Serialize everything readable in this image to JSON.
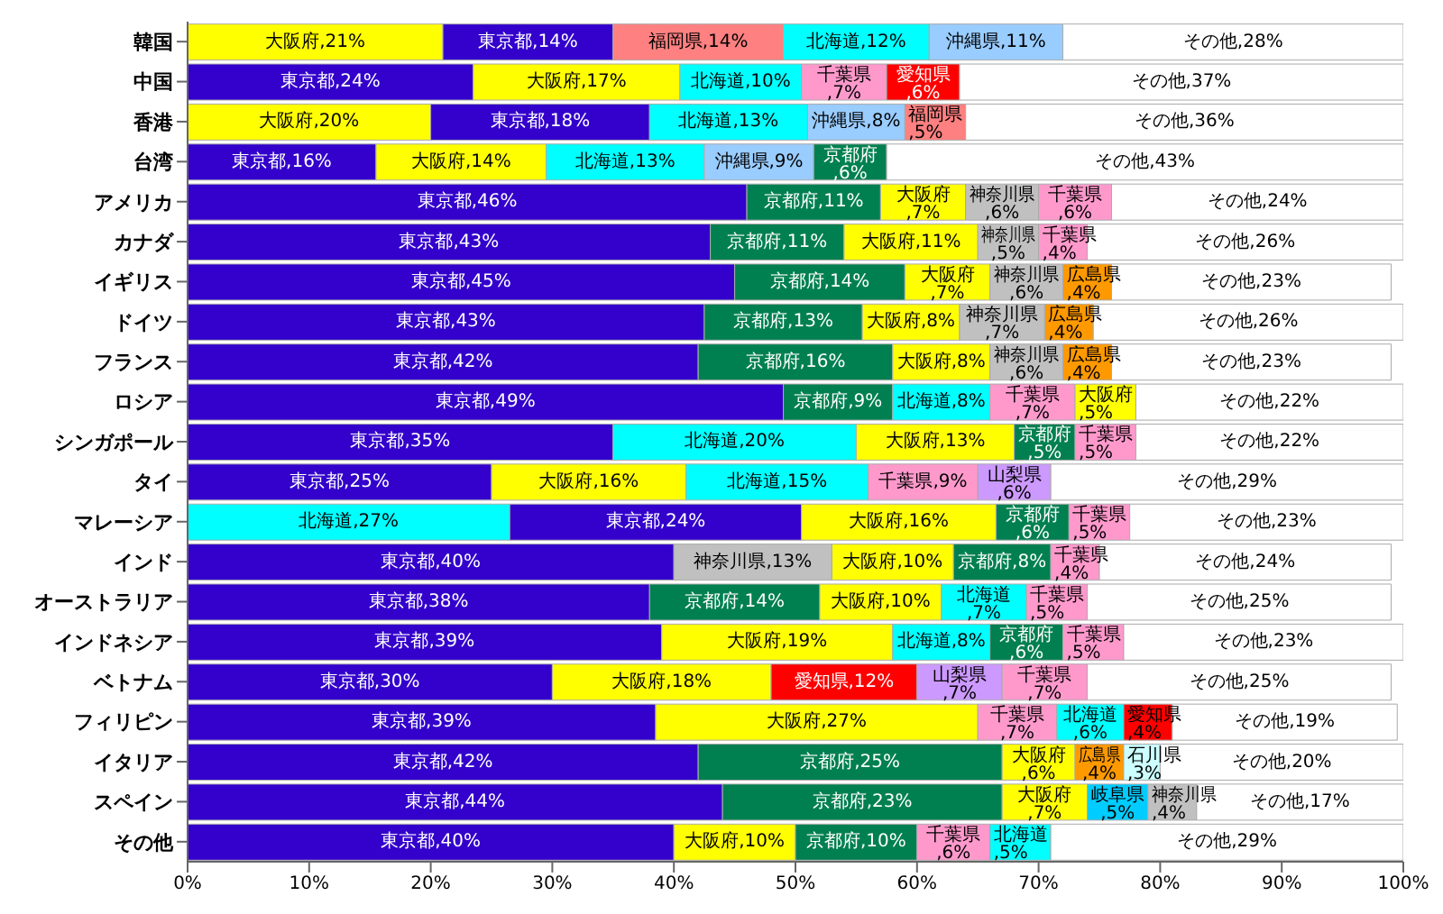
{
  "chart_data": {
    "type": "bar",
    "orientation": "horizontal",
    "stacked": true,
    "categories": [
      "韓国",
      "中国",
      "香港",
      "台湾",
      "アメリカ",
      "カナダ",
      "イギリス",
      "ドイツ",
      "フランス",
      "ロシア",
      "シンガポール",
      "タイ",
      "マレーシア",
      "インド",
      "オーストラリア",
      "インドネシア",
      "ベトナム",
      "フィリピン",
      "イタリア",
      "スペイン",
      "その他"
    ],
    "xlim": [
      0,
      100
    ],
    "xticks": [
      {
        "value": 0,
        "label": "0%"
      },
      {
        "value": 10,
        "label": "10%"
      },
      {
        "value": 20,
        "label": "20%"
      },
      {
        "value": 30,
        "label": "30%"
      },
      {
        "value": 40,
        "label": "40%"
      },
      {
        "value": 50,
        "label": "50%"
      },
      {
        "value": 60,
        "label": "60%"
      },
      {
        "value": 70,
        "label": "70%"
      },
      {
        "value": 80,
        "label": "80%"
      },
      {
        "value": 90,
        "label": "90%"
      },
      {
        "value": 100,
        "label": "100%"
      }
    ],
    "grid": false,
    "legend": false,
    "series": [
      {
        "values": [
          21,
          23.5,
          20,
          15.5,
          46,
          43,
          45,
          42.5,
          42,
          49,
          35,
          25,
          26.5,
          40,
          38,
          39,
          30,
          38.5,
          42,
          44,
          40
        ],
        "colors": [
          "#ffff00",
          "#3300cc",
          "#ffff00",
          "#3300cc",
          "#3300cc",
          "#3300cc",
          "#3300cc",
          "#3300cc",
          "#3300cc",
          "#3300cc",
          "#3300cc",
          "#3300cc",
          "#00ffff",
          "#3300cc",
          "#3300cc",
          "#3300cc",
          "#3300cc",
          "#3300cc",
          "#3300cc",
          "#3300cc",
          "#3300cc"
        ],
        "value_labels": [
          "大阪府,21%",
          "東京都,24%",
          "大阪府,20%",
          "東京都,16%",
          "東京都,46%",
          "東京都,43%",
          "東京都,45%",
          "東京都,43%",
          "東京都,42%",
          "東京都,49%",
          "東京都,35%",
          "東京都,25%",
          "北海道,27%",
          "東京都,40%",
          "東京都,38%",
          "東京都,39%",
          "東京都,30%",
          "東京都,39%",
          "東京都,42%",
          "東京都,44%",
          "東京都,40%"
        ]
      },
      {
        "values": [
          14,
          17,
          18,
          14,
          11,
          11,
          14,
          13,
          16,
          9,
          20,
          16,
          24,
          13,
          14,
          19,
          18,
          26.5,
          25,
          23,
          10
        ],
        "colors": [
          "#3300cc",
          "#ffff00",
          "#3300cc",
          "#ffff00",
          "#008050",
          "#008050",
          "#008050",
          "#008050",
          "#008050",
          "#008050",
          "#00ffff",
          "#ffff00",
          "#3300cc",
          "#c0c0c0",
          "#008050",
          "#ffff00",
          "#ffff00",
          "#ffff00",
          "#008050",
          "#008050",
          "#ffff00"
        ],
        "value_labels": [
          "東京都,14%",
          "大阪府,17%",
          "東京都,18%",
          "大阪府,14%",
          "京都府,11%",
          "京都府,11%",
          "京都府,14%",
          "京都府,13%",
          "京都府,16%",
          "京都府,9%",
          "北海道,20%",
          "大阪府,16%",
          "東京都,24%",
          "神奈川県,13%",
          "京都府,14%",
          "大阪府,19%",
          "大阪府,18%",
          "大阪府,27%",
          "京都府,25%",
          "京都府,23%",
          "大阪府,10%"
        ]
      },
      {
        "values": [
          14,
          10,
          13,
          13,
          7,
          11,
          7,
          8,
          8,
          8,
          13,
          15,
          16,
          10,
          10,
          8,
          12,
          6.5,
          6,
          7,
          10
        ],
        "colors": [
          "#ff8080",
          "#00ffff",
          "#00ffff",
          "#00ffff",
          "#ffff00",
          "#ffff00",
          "#ffff00",
          "#ffff00",
          "#ffff00",
          "#00ffff",
          "#ffff00",
          "#00ffff",
          "#ffff00",
          "#ffff00",
          "#ffff00",
          "#00ffff",
          "#ff0000",
          "#ff99cc",
          "#ffff00",
          "#ffff00",
          "#008050"
        ],
        "value_labels": [
          "福岡県,14%",
          "北海道,10%",
          "北海道,13%",
          "北海道,13%",
          "大阪府,7%",
          "大阪府,11%",
          "大阪府,7%",
          "大阪府,8%",
          "大阪府,8%",
          "北海道,8%",
          "大阪府,13%",
          "北海道,15%",
          "大阪府,16%",
          "大阪府,10%",
          "大阪府,10%",
          "北海道,8%",
          "愛知県,12%",
          "千葉県,7%",
          "大阪府,6%",
          "大阪府,7%",
          "京都府,10%"
        ]
      },
      {
        "values": [
          12,
          7,
          8,
          9,
          6,
          5,
          6,
          7,
          6,
          7,
          5,
          9,
          6,
          8,
          7,
          6,
          7,
          5.5,
          4,
          5,
          6
        ],
        "colors": [
          "#00ffff",
          "#ff99cc",
          "#99ccff",
          "#99ccff",
          "#c0c0c0",
          "#c0c0c0",
          "#c0c0c0",
          "#c0c0c0",
          "#c0c0c0",
          "#ff99cc",
          "#008050",
          "#ff99cc",
          "#008050",
          "#008050",
          "#00ffff",
          "#008050",
          "#cc99ff",
          "#00ffff",
          "#ff9900",
          "#00ccff",
          "#ff99cc"
        ],
        "value_labels": [
          "北海道,12%",
          "千葉県,7%",
          "沖縄県,8%",
          "沖縄県,9%",
          "神奈川県,6%",
          "神奈川県,5%",
          "神奈川県,6%",
          "神奈川県,7%",
          "神奈川県,6%",
          "千葉県,7%",
          "京都府,5%",
          "千葉県,9%",
          "京都府,6%",
          "京都府,8%",
          "北海道,7%",
          "京都府,6%",
          "山梨県,7%",
          "北海道,6%",
          "広島県,4%",
          "岐阜県,5%",
          "千葉県,6%"
        ]
      },
      {
        "values": [
          11,
          6,
          5,
          6,
          6,
          4,
          4,
          4,
          4,
          5,
          5,
          6,
          5,
          4,
          5,
          5,
          7,
          4,
          3,
          4,
          5
        ],
        "colors": [
          "#99ccff",
          "#ff0000",
          "#ff8080",
          "#008050",
          "#ff99cc",
          "#ff99cc",
          "#ff9900",
          "#ff9900",
          "#ff9900",
          "#ffff00",
          "#ff99cc",
          "#cc99ff",
          "#ff99cc",
          "#ff99cc",
          "#ff99cc",
          "#ff99cc",
          "#ff99cc",
          "#ff0000",
          "#ccffff",
          "#c0c0c0",
          "#00ffff"
        ],
        "value_labels": [
          "沖縄県,11%",
          "愛知県,6%",
          "福岡県,5%",
          "京都府,6%",
          "千葉県,6%",
          "千葉県,4%",
          "広島県,4%",
          "広島県,4%",
          "広島県,4%",
          "大阪府,5%",
          "千葉県,5%",
          "山梨県,6%",
          "千葉県,5%",
          "千葉県,4%",
          "千葉県,5%",
          "千葉県,5%",
          "千葉県,7%",
          "愛知県,4%",
          "石川県,3%",
          "神奈川県,4%",
          "北海道,5%"
        ]
      },
      {
        "values": [
          28,
          36.5,
          36,
          42.5,
          24,
          26,
          23,
          25.5,
          23,
          22,
          22,
          29,
          22.5,
          24,
          25,
          23,
          25,
          18.5,
          20,
          17,
          29
        ],
        "colors": [
          "#ffffff",
          "#ffffff",
          "#ffffff",
          "#ffffff",
          "#ffffff",
          "#ffffff",
          "#ffffff",
          "#ffffff",
          "#ffffff",
          "#ffffff",
          "#ffffff",
          "#ffffff",
          "#ffffff",
          "#ffffff",
          "#ffffff",
          "#ffffff",
          "#ffffff",
          "#ffffff",
          "#ffffff",
          "#ffffff",
          "#ffffff"
        ],
        "value_labels": [
          "その他,28%",
          "その他,37%",
          "その他,36%",
          "その他,43%",
          "その他,24%",
          "その他,26%",
          "その他,23%",
          "その他,26%",
          "その他,23%",
          "その他,22%",
          "その他,22%",
          "その他,29%",
          "その他,23%",
          "その他,24%",
          "その他,25%",
          "その他,23%",
          "その他,25%",
          "その他,19%",
          "その他,20%",
          "その他,17%",
          "その他,29%"
        ]
      }
    ]
  }
}
